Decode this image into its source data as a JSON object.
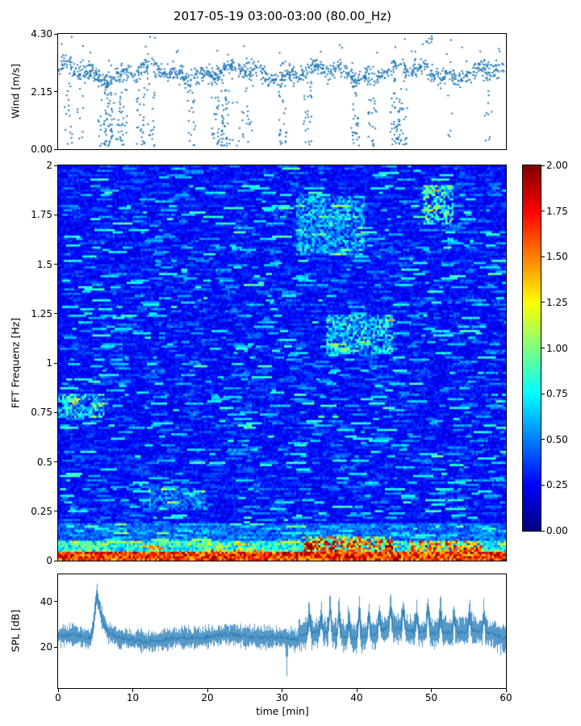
{
  "title": "2017-05-19 03:00-03:00 (80.00_Hz)",
  "colors": {
    "series_blue": "#1f77b4",
    "axis": "#000000",
    "background": "#ffffff"
  },
  "chart_data": [
    {
      "type": "scatter",
      "name": "wind",
      "ylabel": "Wind [m/s]",
      "ylim": [
        0,
        4.3
      ],
      "ytick_values": [
        0,
        2.15,
        4.3
      ],
      "ytick_labels": [
        "0.00",
        "2.15",
        "4.30"
      ],
      "xlim": [
        0,
        60
      ],
      "marker_color": "#1f77b4",
      "band_center_ms": 2.9,
      "band_spread_ms": 0.35,
      "dropout_clusters": 26,
      "dropout_min_ms": 0.1,
      "max_observed_ms": 4.25,
      "n_points_approx": 1700
    },
    {
      "type": "heatmap",
      "name": "spectrogram",
      "ylabel": "FFT Frequenz [Hz]",
      "ylim": [
        0,
        2
      ],
      "ytick_values": [
        0,
        0.25,
        0.5,
        0.75,
        1,
        1.25,
        1.5,
        1.75,
        2
      ],
      "ytick_labels": [
        "0",
        "0.25",
        "0.5",
        "0.75",
        "1",
        "1.25",
        "1.5",
        "1.75",
        "2"
      ],
      "xlim": [
        0,
        60
      ],
      "colormap": "jet",
      "clim": [
        0,
        2
      ],
      "colorbar_tick_values": [
        0,
        0.25,
        0.5,
        0.75,
        1,
        1.25,
        1.5,
        1.75,
        2
      ],
      "colorbar_tick_labels": [
        "0.00",
        "0.25",
        "0.50",
        "0.75",
        "1.00",
        "1.25",
        "1.50",
        "1.75",
        "2.00"
      ],
      "background_level": [
        0.15,
        0.4
      ],
      "bottom_band": {
        "f_max": 0.035,
        "level": [
          1.3,
          2.0
        ]
      },
      "low_freq_boost": {
        "f_max": 0.09,
        "level": [
          0.25,
          0.8
        ]
      },
      "hotspots": [
        {
          "t": [
            0,
            6
          ],
          "f": [
            0.72,
            0.84
          ],
          "boost": 0.55
        },
        {
          "t": [
            32,
            41
          ],
          "f": [
            1.55,
            1.85
          ],
          "boost": 0.4
        },
        {
          "t": [
            36,
            45
          ],
          "f": [
            1.05,
            1.25
          ],
          "boost": 0.5
        },
        {
          "t": [
            49,
            53
          ],
          "f": [
            1.7,
            1.9
          ],
          "boost": 0.65
        },
        {
          "t": [
            12,
            20
          ],
          "f": [
            0.25,
            0.36
          ],
          "boost": 0.3
        },
        {
          "t": [
            33,
            45
          ],
          "f": [
            0.03,
            0.12
          ],
          "boost": 1.0
        },
        {
          "t": [
            47,
            57
          ],
          "f": [
            0.02,
            0.1
          ],
          "boost": 0.85
        },
        {
          "t": [
            20,
            30
          ],
          "f": [
            0.01,
            0.05
          ],
          "boost": 0.7
        }
      ]
    },
    {
      "type": "line",
      "name": "spl",
      "ylabel": "SPL [dB]",
      "xlabel": "time [min]",
      "ylim": [
        2,
        52
      ],
      "ytick_values": [
        20,
        40
      ],
      "ytick_labels": [
        "20",
        "40"
      ],
      "xtick_values": [
        0,
        10,
        20,
        30,
        40,
        50,
        60
      ],
      "xtick_labels": [
        "0",
        "10",
        "20",
        "30",
        "40",
        "50",
        "60"
      ],
      "line_color": "#1f77b4",
      "baseline_db": 24,
      "noise_halfwidth_db": 3.5,
      "peak": {
        "time_min": 5.2,
        "value_db": 47
      },
      "quiet_dip": {
        "time_min": 30.6,
        "value_db": 11
      },
      "elevated": {
        "from_min": 32,
        "mean_db": 27,
        "spike_times_min": [
          33.6,
          35.2,
          36.4,
          37.6,
          38.9,
          40.3,
          41.6,
          43.0,
          44.5,
          46.2,
          48.0,
          49.5,
          51.2,
          53.0,
          55.1,
          57.0
        ],
        "spike_values_db": [
          38,
          36,
          40,
          39,
          37,
          41,
          38,
          36,
          39,
          37,
          36,
          40,
          38,
          35,
          37,
          36
        ]
      }
    }
  ]
}
